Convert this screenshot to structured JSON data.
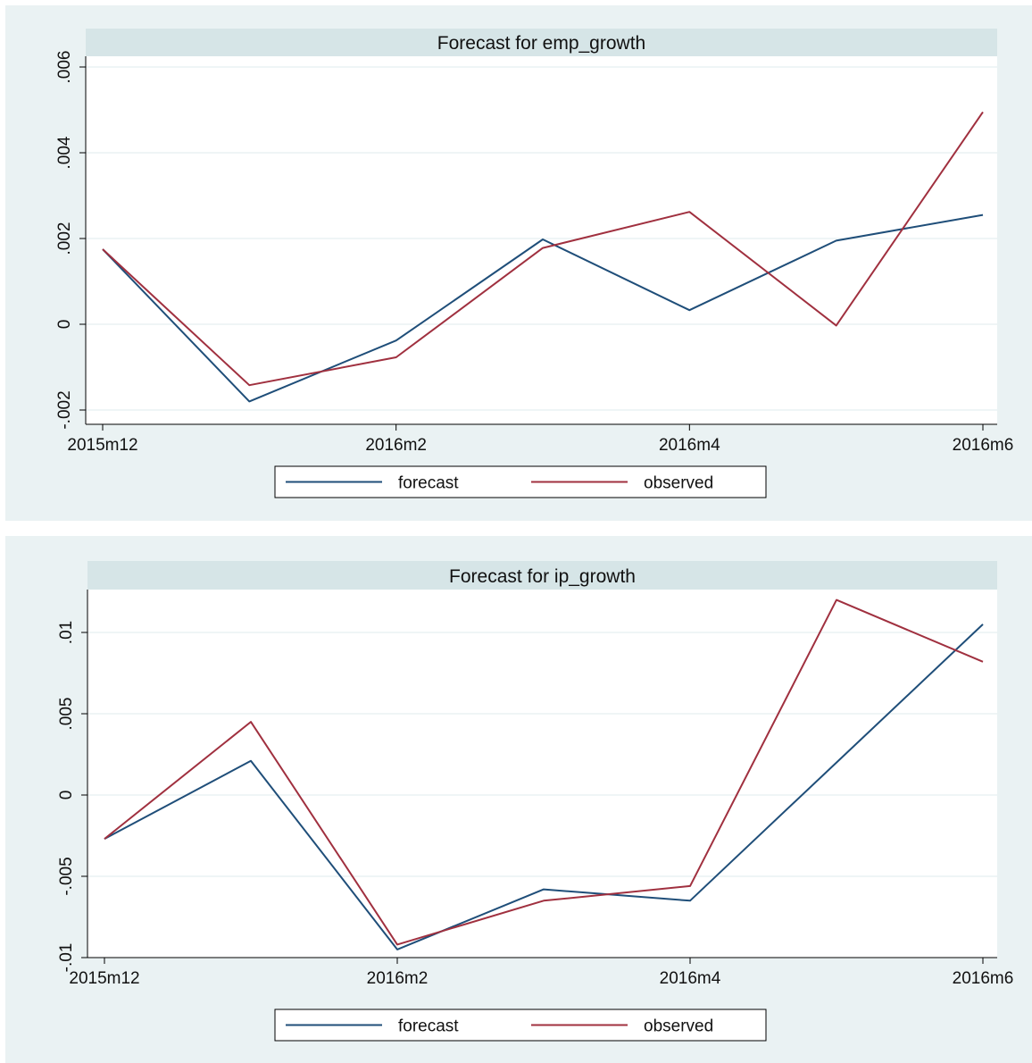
{
  "chart_data": [
    {
      "type": "line",
      "title": "Forecast for emp_growth",
      "xlabel": "",
      "ylabel": "",
      "x": [
        "2015m12",
        "2016m1",
        "2016m2",
        "2016m3",
        "2016m4",
        "2016m5",
        "2016m6"
      ],
      "x_tick_labels": [
        "2015m12",
        "2016m2",
        "2016m4",
        "2016m6"
      ],
      "y_ticks": [
        -0.002,
        0,
        0.002,
        0.004,
        0.006
      ],
      "y_tick_labels": [
        "-.002",
        "0",
        ".002",
        ".004",
        ".006"
      ],
      "ylim": [
        -0.002,
        0.006
      ],
      "grid": true,
      "legend_position": "bottom",
      "series": [
        {
          "name": "forecast",
          "color": "#1f4e79",
          "values": [
            0.00175,
            -0.0018,
            -0.00038,
            0.00198,
            0.00033,
            0.00195,
            0.00255
          ]
        },
        {
          "name": "observed",
          "color": "#a0303f",
          "values": [
            0.00175,
            -0.00142,
            -0.00077,
            0.00178,
            0.00262,
            -3e-05,
            0.00495
          ]
        }
      ]
    },
    {
      "type": "line",
      "title": "Forecast for ip_growth",
      "xlabel": "",
      "ylabel": "",
      "x": [
        "2015m12",
        "2016m1",
        "2016m2",
        "2016m3",
        "2016m4",
        "2016m5",
        "2016m6"
      ],
      "x_tick_labels": [
        "2015m12",
        "2016m2",
        "2016m4",
        "2016m6"
      ],
      "y_ticks": [
        -0.01,
        -0.005,
        0,
        0.005,
        0.01
      ],
      "y_tick_labels": [
        "-.01",
        "-.005",
        "0",
        ".005",
        ".01"
      ],
      "ylim": [
        -0.0105,
        0.0125
      ],
      "grid": true,
      "legend_position": "bottom",
      "series": [
        {
          "name": "forecast",
          "color": "#1f4e79",
          "values": [
            -0.0027,
            0.0021,
            -0.0095,
            -0.0058,
            -0.0065,
            0.002,
            0.0105
          ]
        },
        {
          "name": "observed",
          "color": "#a0303f",
          "values": [
            -0.0027,
            0.0045,
            -0.0092,
            -0.0065,
            -0.0056,
            0.012,
            0.0082
          ]
        }
      ]
    }
  ]
}
